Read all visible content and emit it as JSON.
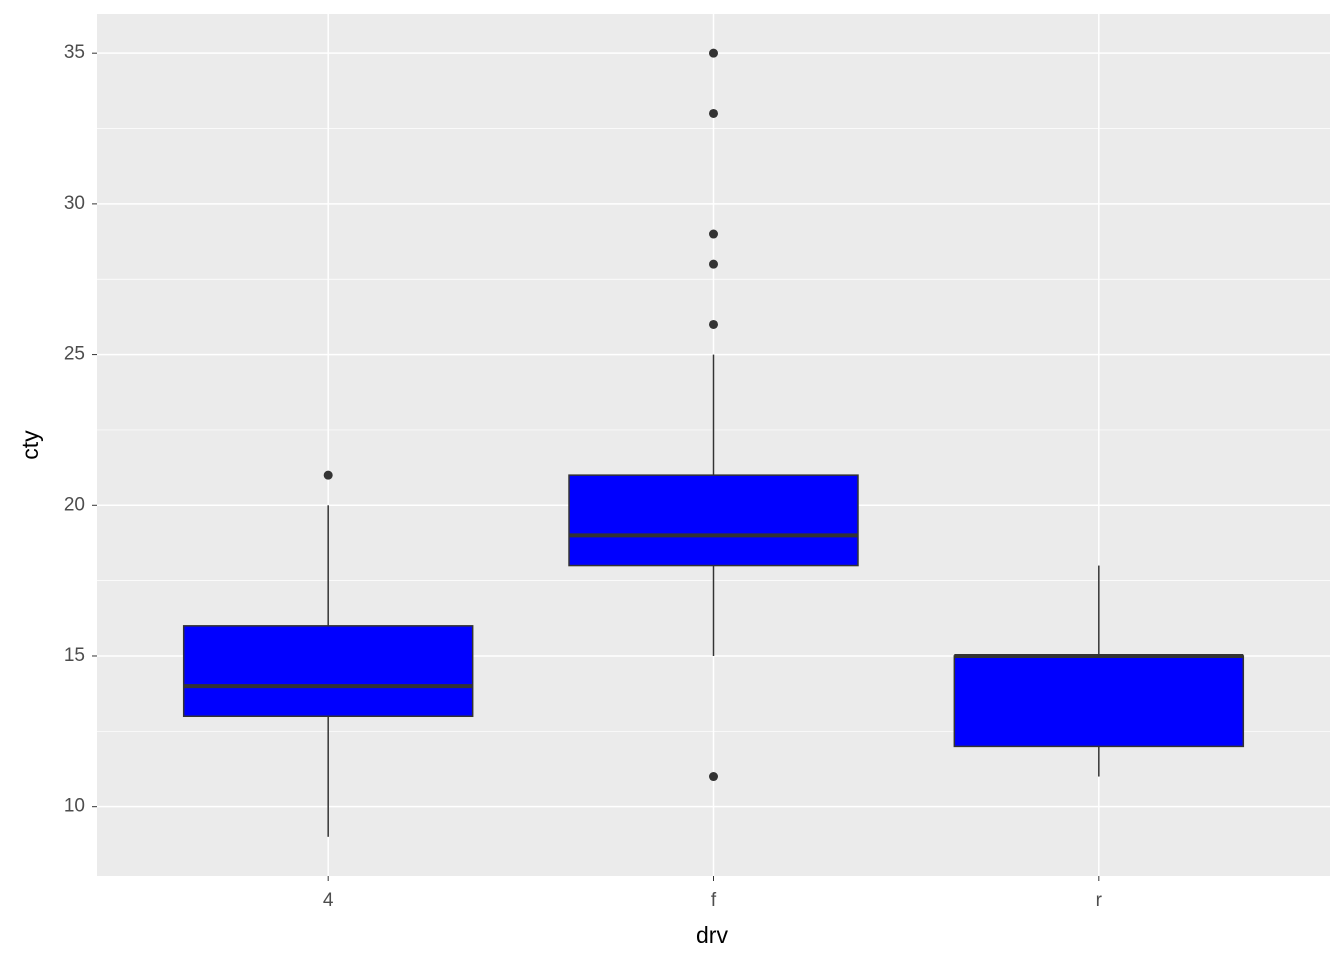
{
  "chart_data": {
    "type": "boxplot",
    "x_label": "drv",
    "y_label": "cty",
    "categories": [
      "4",
      "f",
      "r"
    ],
    "boxes": [
      {
        "min": 9,
        "q1": 13,
        "median": 14,
        "q3": 16,
        "max": 20,
        "outliers": [
          21
        ]
      },
      {
        "min": 15,
        "q1": 18,
        "median": 19,
        "q3": 21,
        "max": 25,
        "outliers": [
          26,
          28,
          29,
          33,
          35,
          11
        ]
      },
      {
        "min": 11,
        "q1": 12,
        "median": 15,
        "q3": 15,
        "max": 18,
        "outliers": []
      }
    ],
    "fill": "#0000ff",
    "line_color": "#333333",
    "ylim": [
      7.7,
      36.3
    ],
    "yticks": [
      10,
      15,
      20,
      25,
      30,
      35
    ],
    "grid": true
  }
}
